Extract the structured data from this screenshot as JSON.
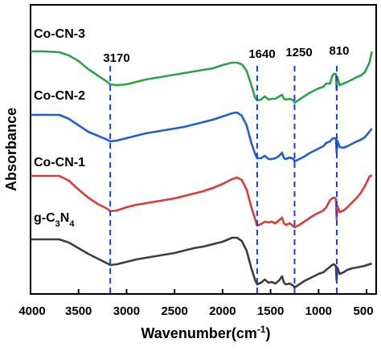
{
  "chart_data": {
    "type": "line",
    "xlabel": "Wavenumber(cm",
    "xlabel_sup": "-1",
    "xlabel_end": ")",
    "ylabel": "Absorbance",
    "xlim": [
      4000,
      400
    ],
    "x_reversed": true,
    "xticks": [
      4000,
      3500,
      3000,
      2500,
      2000,
      1500,
      1000,
      500
    ],
    "y_ticks_shown": false,
    "reference_lines": [
      {
        "x": 3170,
        "label": "3170",
        "color": "#1f3fd6"
      },
      {
        "x": 1640,
        "label": "1640",
        "color": "#1f3fd6"
      },
      {
        "x": 1250,
        "label": "1250",
        "color": "#1f3fd6"
      },
      {
        "x": 810,
        "label": "810",
        "color": "#1f3fd6"
      }
    ],
    "series": [
      {
        "name": "Co-CN-3",
        "color": "#2ea14a",
        "points": [
          [
            4000,
            58
          ],
          [
            3850,
            58
          ],
          [
            3700,
            59
          ],
          [
            3600,
            63
          ],
          [
            3500,
            70
          ],
          [
            3400,
            80
          ],
          [
            3300,
            88
          ],
          [
            3200,
            96
          ],
          [
            3170,
            99
          ],
          [
            3100,
            100
          ],
          [
            3000,
            99
          ],
          [
            2900,
            96
          ],
          [
            2800,
            93
          ],
          [
            2700,
            91
          ],
          [
            2600,
            89
          ],
          [
            2500,
            87
          ],
          [
            2400,
            85
          ],
          [
            2300,
            83
          ],
          [
            2200,
            81
          ],
          [
            2100,
            79
          ],
          [
            2000,
            75
          ],
          [
            1900,
            72
          ],
          [
            1850,
            72
          ],
          [
            1800,
            74
          ],
          [
            1750,
            82
          ],
          [
            1700,
            100
          ],
          [
            1660,
            116
          ],
          [
            1640,
            119
          ],
          [
            1600,
            118
          ],
          [
            1560,
            114
          ],
          [
            1520,
            118
          ],
          [
            1490,
            117
          ],
          [
            1450,
            117
          ],
          [
            1410,
            114
          ],
          [
            1380,
            112
          ],
          [
            1360,
            117
          ],
          [
            1340,
            118
          ],
          [
            1300,
            117
          ],
          [
            1260,
            119
          ],
          [
            1250,
            122
          ],
          [
            1200,
            118
          ],
          [
            1150,
            114
          ],
          [
            1100,
            110
          ],
          [
            1050,
            107
          ],
          [
            1000,
            104
          ],
          [
            950,
            102
          ],
          [
            920,
            98
          ],
          [
            880,
            98
          ],
          [
            860,
            89
          ],
          [
            840,
            86
          ],
          [
            820,
            86
          ],
          [
            812,
            106
          ],
          [
            805,
            90
          ],
          [
            780,
            100
          ],
          [
            740,
            98
          ],
          [
            700,
            96
          ],
          [
            650,
            93
          ],
          [
            600,
            90
          ],
          [
            560,
            88
          ],
          [
            520,
            84
          ],
          [
            470,
            72
          ],
          [
            445,
            58
          ]
        ]
      },
      {
        "name": "Co-CN-2",
        "color": "#1f5fcf",
        "points": [
          [
            4000,
            137
          ],
          [
            3850,
            137
          ],
          [
            3700,
            137
          ],
          [
            3600,
            142
          ],
          [
            3500,
            150
          ],
          [
            3400,
            158
          ],
          [
            3300,
            163
          ],
          [
            3200,
            168
          ],
          [
            3170,
            170
          ],
          [
            3100,
            169
          ],
          [
            3000,
            166
          ],
          [
            2900,
            163
          ],
          [
            2800,
            160
          ],
          [
            2700,
            158
          ],
          [
            2600,
            156
          ],
          [
            2500,
            154
          ],
          [
            2400,
            152
          ],
          [
            2300,
            149
          ],
          [
            2200,
            146
          ],
          [
            2100,
            143
          ],
          [
            2000,
            139
          ],
          [
            1900,
            135
          ],
          [
            1850,
            134
          ],
          [
            1800,
            138
          ],
          [
            1750,
            150
          ],
          [
            1700,
            172
          ],
          [
            1660,
            186
          ],
          [
            1640,
            191
          ],
          [
            1600,
            191
          ],
          [
            1560,
            188
          ],
          [
            1520,
            192
          ],
          [
            1490,
            192
          ],
          [
            1450,
            191
          ],
          [
            1410,
            188
          ],
          [
            1380,
            184
          ],
          [
            1360,
            191
          ],
          [
            1340,
            192
          ],
          [
            1300,
            190
          ],
          [
            1260,
            192
          ],
          [
            1250,
            195
          ],
          [
            1200,
            192
          ],
          [
            1150,
            189
          ],
          [
            1100,
            185
          ],
          [
            1050,
            182
          ],
          [
            1000,
            179
          ],
          [
            950,
            176
          ],
          [
            920,
            172
          ],
          [
            880,
            170
          ],
          [
            860,
            167
          ],
          [
            840,
            166
          ],
          [
            820,
            166
          ],
          [
            812,
            184
          ],
          [
            805,
            169
          ],
          [
            780,
            177
          ],
          [
            740,
            178
          ],
          [
            700,
            176
          ],
          [
            650,
            173
          ],
          [
            600,
            170
          ],
          [
            560,
            168
          ],
          [
            520,
            165
          ],
          [
            470,
            158
          ],
          [
            445,
            154
          ]
        ]
      },
      {
        "name": "Co-CN-1",
        "color": "#d93a3a",
        "points": [
          [
            4000,
            213
          ],
          [
            3850,
            213
          ],
          [
            3700,
            213
          ],
          [
            3600,
            219
          ],
          [
            3500,
            230
          ],
          [
            3400,
            240
          ],
          [
            3300,
            248
          ],
          [
            3200,
            254
          ],
          [
            3170,
            257
          ],
          [
            3100,
            256
          ],
          [
            3000,
            252
          ],
          [
            2900,
            249
          ],
          [
            2800,
            247
          ],
          [
            2700,
            245
          ],
          [
            2600,
            243
          ],
          [
            2500,
            241
          ],
          [
            2400,
            238
          ],
          [
            2300,
            235
          ],
          [
            2200,
            232
          ],
          [
            2100,
            228
          ],
          [
            2000,
            223
          ],
          [
            1900,
            217
          ],
          [
            1850,
            215
          ],
          [
            1800,
            218
          ],
          [
            1750,
            230
          ],
          [
            1700,
            252
          ],
          [
            1660,
            267
          ],
          [
            1640,
            275
          ],
          [
            1600,
            273
          ],
          [
            1560,
            270
          ],
          [
            1520,
            271
          ],
          [
            1490,
            270
          ],
          [
            1450,
            272
          ],
          [
            1410,
            268
          ],
          [
            1380,
            265
          ],
          [
            1360,
            272
          ],
          [
            1340,
            274
          ],
          [
            1300,
            272
          ],
          [
            1260,
            276
          ],
          [
            1250,
            277
          ],
          [
            1200,
            274
          ],
          [
            1150,
            270
          ],
          [
            1100,
            266
          ],
          [
            1050,
            262
          ],
          [
            1000,
            259
          ],
          [
            950,
            256
          ],
          [
            920,
            252
          ],
          [
            880,
            243
          ],
          [
            860,
            241
          ],
          [
            840,
            240
          ],
          [
            820,
            241
          ],
          [
            812,
            267
          ],
          [
            805,
            250
          ],
          [
            780,
            258
          ],
          [
            740,
            256
          ],
          [
            700,
            252
          ],
          [
            650,
            246
          ],
          [
            600,
            240
          ],
          [
            560,
            234
          ],
          [
            520,
            226
          ],
          [
            470,
            214
          ],
          [
            445,
            212
          ]
        ]
      },
      {
        "name": "g-C3N4",
        "name_html": "g-C<tspan baseline-shift='sub' font-size='10'>3</tspan>N<tspan baseline-shift='sub' font-size='10'>4</tspan>",
        "color": "#3d3d3d",
        "points": [
          [
            4000,
            292
          ],
          [
            3850,
            292
          ],
          [
            3700,
            292
          ],
          [
            3600,
            296
          ],
          [
            3500,
            303
          ],
          [
            3400,
            310
          ],
          [
            3300,
            316
          ],
          [
            3200,
            322
          ],
          [
            3170,
            324
          ],
          [
            3100,
            323
          ],
          [
            3000,
            320
          ],
          [
            2900,
            317
          ],
          [
            2800,
            315
          ],
          [
            2700,
            313
          ],
          [
            2600,
            311
          ],
          [
            2500,
            309
          ],
          [
            2400,
            306
          ],
          [
            2300,
            303
          ],
          [
            2200,
            301
          ],
          [
            2100,
            298
          ],
          [
            2000,
            295
          ],
          [
            1900,
            290
          ],
          [
            1850,
            290
          ],
          [
            1800,
            294
          ],
          [
            1750,
            306
          ],
          [
            1700,
            328
          ],
          [
            1660,
            343
          ],
          [
            1640,
            348
          ],
          [
            1600,
            346
          ],
          [
            1560,
            342
          ],
          [
            1520,
            346
          ],
          [
            1490,
            345
          ],
          [
            1450,
            347
          ],
          [
            1410,
            343
          ],
          [
            1380,
            338
          ],
          [
            1360,
            346
          ],
          [
            1340,
            348
          ],
          [
            1300,
            347
          ],
          [
            1260,
            350
          ],
          [
            1250,
            352
          ],
          [
            1200,
            348
          ],
          [
            1150,
            344
          ],
          [
            1100,
            341
          ],
          [
            1050,
            338
          ],
          [
            1000,
            335
          ],
          [
            950,
            333
          ],
          [
            920,
            330
          ],
          [
            880,
            326
          ],
          [
            860,
            324
          ],
          [
            840,
            323
          ],
          [
            820,
            325
          ],
          [
            812,
            343
          ],
          [
            805,
            327
          ],
          [
            780,
            335
          ],
          [
            740,
            333
          ],
          [
            700,
            330
          ],
          [
            650,
            328
          ],
          [
            600,
            327
          ],
          [
            560,
            326
          ],
          [
            520,
            325
          ],
          [
            470,
            323
          ],
          [
            445,
            322
          ]
        ]
      }
    ],
    "series_labels": [
      {
        "series": 0,
        "text": "Co-CN-3"
      },
      {
        "series": 1,
        "text": "Co-CN-2"
      },
      {
        "series": 2,
        "text": "Co-CN-1"
      },
      {
        "series": 3,
        "text": "g-C3N4"
      }
    ]
  }
}
